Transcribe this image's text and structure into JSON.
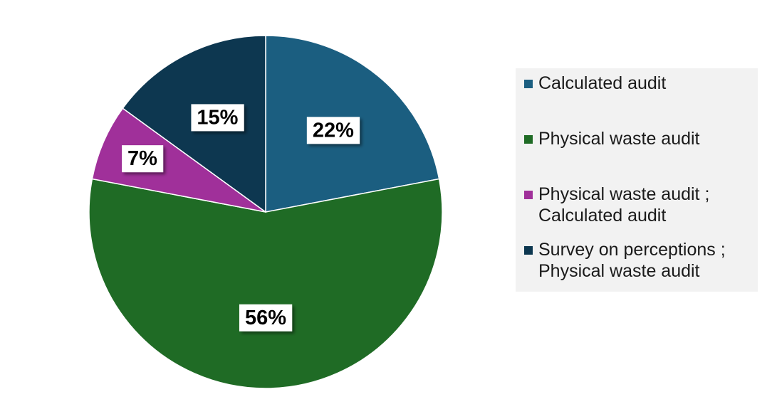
{
  "chart_data": {
    "type": "pie",
    "title": "",
    "legend_position": "right",
    "slices": [
      {
        "name": "Calculated audit",
        "value": 22,
        "label": "22%",
        "color": "#1b5e80"
      },
      {
        "name": "Physical waste audit",
        "value": 56,
        "label": "56%",
        "color": "#1f6b25"
      },
      {
        "name": "Physical waste audit ;\nCalculated audit",
        "value": 7,
        "label": "7%",
        "color": "#a0309a"
      },
      {
        "name": "Survey on perceptions ;\nPhysical waste audit",
        "value": 15,
        "label": "15%",
        "color": "#0d3750"
      }
    ]
  }
}
